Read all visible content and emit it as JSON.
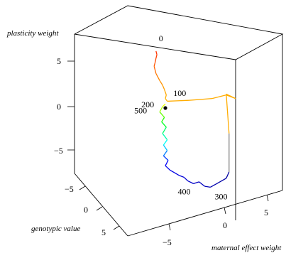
{
  "chart_data": {
    "type": "line",
    "projection": "3d-perspective",
    "axes": {
      "x": {
        "label": "maternal effect weight",
        "ticks": [
          -5,
          0,
          5
        ]
      },
      "y": {
        "label": "genotypic value",
        "ticks": [
          -5,
          0,
          5
        ]
      },
      "z": {
        "label": "plasticity weight",
        "ticks": [
          5,
          0,
          -5
        ]
      }
    },
    "series": [
      {
        "points": [
          [
            -1.0,
            0.0,
            6.2
          ],
          [
            -0.9,
            0.0,
            5.8
          ],
          [
            -1.0,
            0.0,
            5.4
          ],
          [
            -1.1,
            0.0,
            4.9
          ],
          [
            -1.2,
            0.0,
            4.5
          ],
          [
            -1.1,
            0.0,
            4.1
          ],
          [
            -1.0,
            0.0,
            3.7
          ],
          [
            -0.8,
            0.0,
            3.3
          ],
          [
            -0.6,
            0.0,
            2.9
          ],
          [
            -0.3,
            0.0,
            2.4
          ],
          [
            -0.1,
            0.0,
            1.9
          ],
          [
            0.1,
            0.0,
            1.3
          ],
          [
            0.0,
            0.0,
            0.9
          ],
          [
            0.2,
            0.0,
            0.6
          ],
          [
            2.5,
            0.0,
            0.7
          ],
          [
            5.0,
            0.0,
            0.9
          ],
          [
            6.5,
            0.0,
            1.3
          ],
          [
            7.5,
            0.0,
            0.9
          ],
          [
            6.5,
            0.0,
            1.4
          ],
          [
            6.8,
            0.0,
            -3.0
          ],
          [
            6.8,
            0.0,
            -7.3
          ],
          [
            6.5,
            0.0,
            -8.0
          ],
          [
            5.5,
            0.0,
            -8.6
          ],
          [
            4.8,
            0.0,
            -9.0
          ],
          [
            4.2,
            0.0,
            -8.9
          ],
          [
            3.6,
            0.0,
            -8.4
          ],
          [
            3.0,
            0.0,
            -8.6
          ],
          [
            2.4,
            0.0,
            -8.3
          ],
          [
            2.0,
            0.0,
            -7.9
          ],
          [
            1.5,
            0.0,
            -7.7
          ],
          [
            1.0,
            0.0,
            -7.4
          ],
          [
            0.5,
            0.0,
            -7.1
          ],
          [
            0.0,
            0.0,
            -6.6
          ],
          [
            0.3,
            0.0,
            -6.0
          ],
          [
            -0.2,
            0.0,
            -5.5
          ],
          [
            0.2,
            0.0,
            -4.9
          ],
          [
            -0.2,
            0.0,
            -4.3
          ],
          [
            0.2,
            0.0,
            -3.7
          ],
          [
            -0.3,
            0.0,
            -3.0
          ],
          [
            0.1,
            0.0,
            -2.3
          ],
          [
            -0.4,
            0.0,
            -1.7
          ],
          [
            -0.1,
            0.0,
            -1.2
          ],
          [
            -0.6,
            0.0,
            -0.6
          ],
          [
            -0.3,
            0.0,
            0.0
          ],
          [
            0.0,
            0.0,
            0.3
          ]
        ]
      }
    ],
    "labeled_points": [
      {
        "label": "0",
        "point": [
          -1.0,
          0.0,
          6.2
        ]
      },
      {
        "label": "100",
        "point": [
          0.4,
          0.0,
          0.7
        ]
      },
      {
        "label": "200",
        "point": [
          -0.6,
          0.0,
          0.0
        ]
      },
      {
        "label": "300",
        "point": [
          5.8,
          0.0,
          -8.6
        ]
      },
      {
        "label": "400",
        "point": [
          3.3,
          0.0,
          -8.6
        ]
      },
      {
        "label": "500",
        "point": [
          -0.9,
          0.0,
          -0.6
        ]
      }
    ],
    "marker_point": [
      0.0,
      0.0,
      0.0
    ],
    "colors": {
      "gradient": [
        "#ff0000",
        "#ffa500",
        "#ffff00",
        "#00ff00",
        "#00ffff",
        "#0000ff",
        "#00008b"
      ],
      "vertical_line": "#888888",
      "box": "#000000"
    }
  }
}
